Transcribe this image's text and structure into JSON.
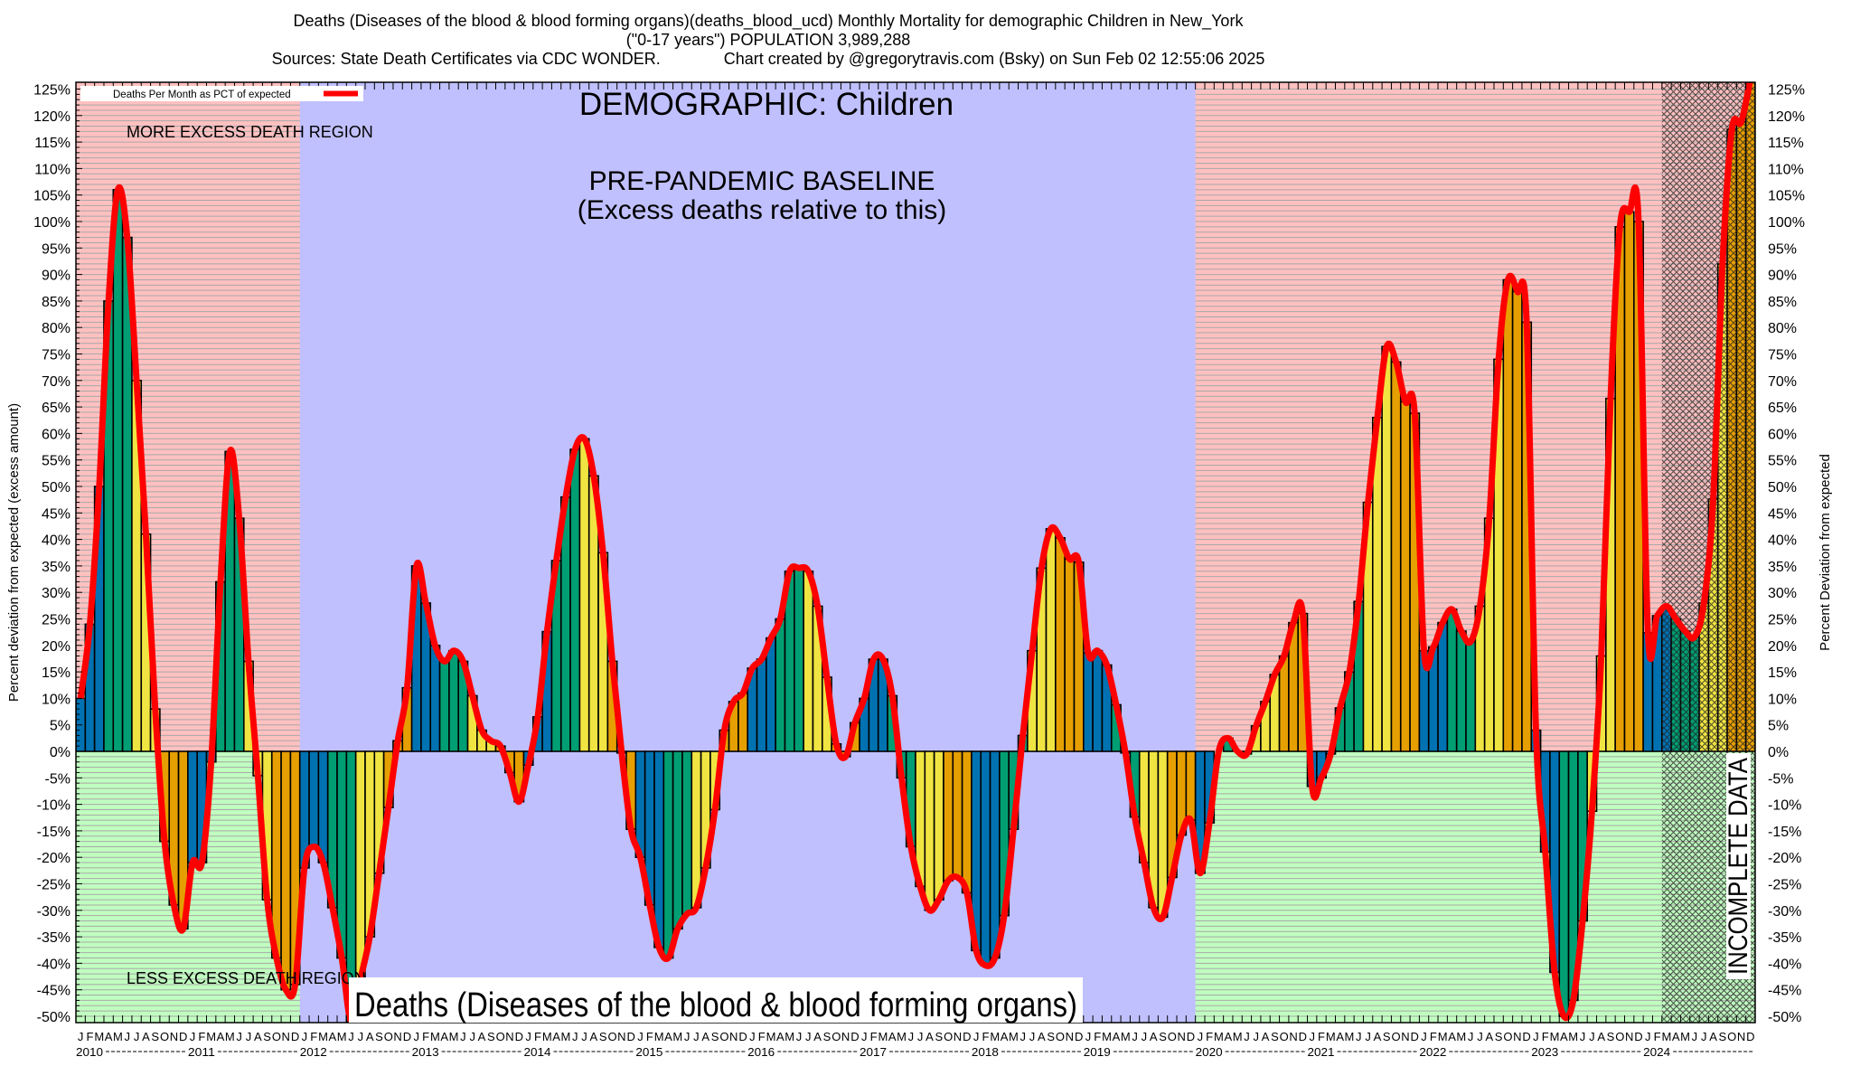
{
  "header": {
    "title_line1": "Deaths (Diseases of the blood & blood forming organs)(deaths_blood_ucd) Monthly Mortality for demographic Children in New_York",
    "title_line2": "(\"0-17 years\") POPULATION 3,989,288",
    "title_line3": "Sources: State Death Certificates via CDC WONDER.              Chart created by @gregorytravis.com (Bsky) on Sun Feb 02 12:55:06 2025"
  },
  "chart_data": {
    "type": "bar",
    "overlay": "line",
    "title": "DEMOGRAPHIC: Children",
    "ylabel_left": "Percent deviation from expected (excess amount)",
    "ylabel_right": "Percent Deviation from expected",
    "ylim": [
      -50,
      125
    ],
    "yticks": [
      -50,
      -45,
      -40,
      -35,
      -30,
      -25,
      -20,
      -15,
      -10,
      -5,
      0,
      5,
      10,
      15,
      20,
      25,
      30,
      35,
      40,
      45,
      50,
      55,
      60,
      65,
      70,
      75,
      80,
      85,
      90,
      95,
      100,
      105,
      110,
      115,
      120,
      125
    ],
    "ytick_suffix": "%",
    "grid": "horizontal every 1% in excess/less-excess regions",
    "legend": {
      "label": "Deaths Per Month as PCT of expected",
      "placement": "top-left",
      "color": "#ff0000"
    },
    "month_labels": [
      "J",
      "F",
      "M",
      "A",
      "M",
      "J",
      "J",
      "A",
      "S",
      "O",
      "N",
      "D"
    ],
    "years": [
      "2010",
      "2011",
      "2012",
      "2013",
      "2014",
      "2015",
      "2016",
      "2017",
      "2018",
      "2019",
      "2020",
      "2021",
      "2022",
      "2023",
      "2024"
    ],
    "quarter_colors": [
      "#0072b2",
      "#009e73",
      "#f0e442",
      "#e69f00"
    ],
    "series": [
      {
        "name": "Deaths Per Month as PCT of expected",
        "values_by_year": {
          "2010": [
            10,
            24,
            50,
            85,
            106,
            97,
            70,
            41,
            8,
            -17,
            -29,
            -33.5
          ],
          "2011": [
            -21,
            -21,
            -2,
            32,
            56.6,
            44,
            17,
            -4.6,
            -28,
            -39,
            -45,
            -44
          ],
          "2012": [
            -22,
            -18,
            -21,
            -29.5,
            -39,
            -51,
            -43,
            -35,
            -23,
            -10.6,
            2,
            12
          ],
          "2013": [
            35,
            28,
            20,
            17,
            19,
            17,
            10.5,
            4,
            2,
            1,
            -4,
            -9.5
          ],
          "2014": [
            -2.6,
            6.5,
            22.6,
            36,
            48,
            57,
            59,
            52,
            37.5,
            17,
            -0.3,
            -14.7
          ],
          "2015": [
            -20,
            -29,
            -37,
            -39,
            -33.5,
            -30.7,
            -29.5,
            -22,
            -11,
            4,
            9.4,
            11
          ],
          "2016": [
            15.7,
            17.4,
            21.4,
            25,
            34,
            34.6,
            34,
            27.4,
            14,
            1.4,
            -1,
            5.4
          ],
          "2017": [
            10,
            17.4,
            17.4,
            10.5,
            -5,
            -18,
            -25.5,
            -30,
            -28,
            -24.4,
            -23.8,
            -26.7
          ],
          "2018": [
            -37.6,
            -40.4,
            -39,
            -31,
            -14.7,
            3,
            19,
            34.6,
            42,
            40.3,
            36.3,
            35.7
          ],
          "2019": [
            18.6,
            19,
            16.3,
            8.8,
            -0.3,
            -12.4,
            -21,
            -29.5,
            -31.3,
            -23.8,
            -15.8,
            -13
          ],
          "2020": [
            -23,
            -13.5,
            0,
            2.5,
            0,
            -0.5,
            4.8,
            9.4,
            14.5,
            18,
            24.3,
            26
          ],
          "2021": [
            -6.6,
            -5,
            -0.5,
            8.2,
            15,
            28.3,
            47,
            63,
            76.4,
            73.5,
            66,
            63.8
          ],
          "2022": [
            19,
            19.7,
            24.3,
            26.8,
            22.7,
            20.7,
            27.4,
            44,
            74,
            89,
            86.8,
            81
          ],
          "2023": [
            4,
            -19,
            -41.7,
            -50,
            -47,
            -32,
            -11.3,
            18,
            66.6,
            99,
            101.8,
            100
          ],
          "2024": [
            22.4,
            25.6,
            27.4,
            25,
            22.7,
            21.6,
            28,
            47.6,
            92,
            117.4,
            118.8,
            127
          ]
        }
      }
    ],
    "regions": {
      "excess_color": "#ffc0c0",
      "less_excess_color": "#c0ffc0",
      "baseline_color": "#c0c0ff",
      "baseline_years": [
        "2012",
        "2019"
      ],
      "incomplete_from": "2024-03"
    },
    "annotations": {
      "baseline_line1": "PRE-PANDEMIC BASELINE",
      "baseline_line2": "(Excess deaths relative to this)",
      "more_excess": "MORE EXCESS DEATH REGION",
      "less_excess": "LESS EXCESS DEATH REGION",
      "cause": "Deaths (Diseases of the blood & blood forming organs)",
      "incomplete": "INCOMPLETE DATA"
    }
  }
}
